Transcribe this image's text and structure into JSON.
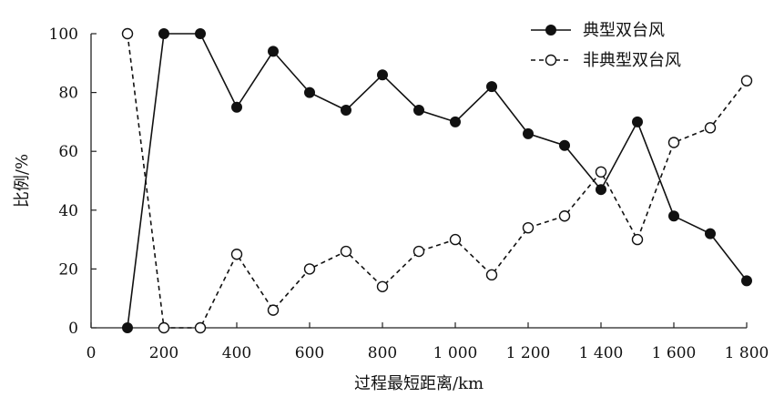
{
  "chart_data": {
    "type": "line",
    "title": "",
    "xlabel": "过程最短距离/km",
    "ylabel": "比例/%",
    "xlim": [
      0,
      1800
    ],
    "ylim": [
      0,
      100
    ],
    "xticks": [
      0,
      200,
      400,
      600,
      800,
      1000,
      1200,
      1400,
      1600,
      1800
    ],
    "xtick_labels": [
      "0",
      "200",
      "400",
      "600",
      "800",
      "1 000",
      "1 200",
      "1 400",
      "1 600",
      "1 800"
    ],
    "yticks": [
      0,
      20,
      40,
      60,
      80,
      100
    ],
    "ytick_labels": [
      "0",
      "20",
      "40",
      "60",
      "80",
      "100"
    ],
    "grid": false,
    "legend_position": "top-right",
    "x": [
      100,
      200,
      300,
      400,
      500,
      600,
      700,
      800,
      900,
      1000,
      1100,
      1200,
      1300,
      1400,
      1500,
      1600,
      1700,
      1800
    ],
    "series": [
      {
        "name": "典型双台风",
        "style": "solid",
        "marker": "filled-circle",
        "values": [
          0,
          100,
          100,
          75,
          94,
          80,
          74,
          86,
          74,
          70,
          82,
          66,
          62,
          47,
          70,
          38,
          32,
          16
        ]
      },
      {
        "name": "非典型双台风",
        "style": "dashed",
        "marker": "open-circle",
        "values": [
          100,
          0,
          0,
          25,
          6,
          20,
          26,
          14,
          26,
          30,
          18,
          34,
          38,
          53,
          30,
          63,
          68,
          84
        ]
      }
    ]
  }
}
